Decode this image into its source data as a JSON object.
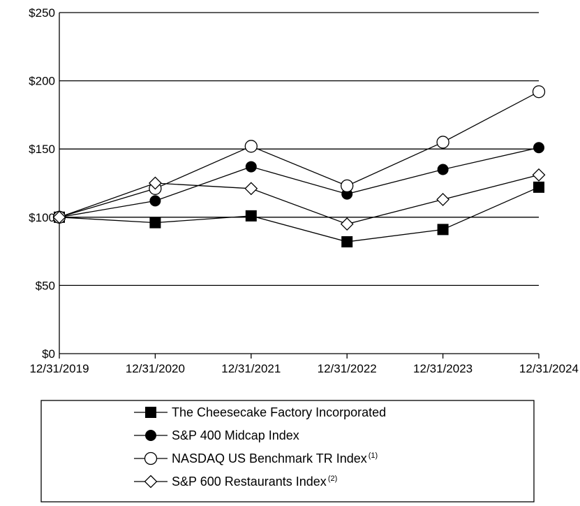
{
  "chart_data": {
    "type": "line",
    "title": "",
    "xlabel": "",
    "ylabel": "",
    "categories": [
      "12/31/2019",
      "12/31/2020",
      "12/31/2021",
      "12/31/2022",
      "12/31/2023",
      "12/31/2024"
    ],
    "ylim": [
      0,
      250
    ],
    "yticks": [
      0,
      50,
      100,
      150,
      200,
      250
    ],
    "ytick_labels": [
      "$0",
      "$50",
      "$100",
      "$150",
      "$200",
      "$250"
    ],
    "grid": "horizontal",
    "legend_position": "bottom",
    "series": [
      {
        "name": "The Cheesecake Factory Incorporated",
        "sup": "",
        "marker": "filled-square",
        "values": [
          100,
          96,
          101,
          82,
          91,
          122
        ]
      },
      {
        "name": "S&P 400 Midcap Index",
        "sup": "",
        "marker": "filled-circle",
        "values": [
          100,
          112,
          137,
          117,
          135,
          151
        ]
      },
      {
        "name": "NASDAQ US Benchmark TR Index",
        "sup": "(1)",
        "marker": "open-circle",
        "values": [
          100,
          121,
          152,
          123,
          155,
          192
        ]
      },
      {
        "name": "S&P 600 Restaurants Index",
        "sup": "(2)",
        "marker": "open-diamond",
        "values": [
          100,
          125,
          121,
          95,
          113,
          131
        ]
      }
    ]
  }
}
